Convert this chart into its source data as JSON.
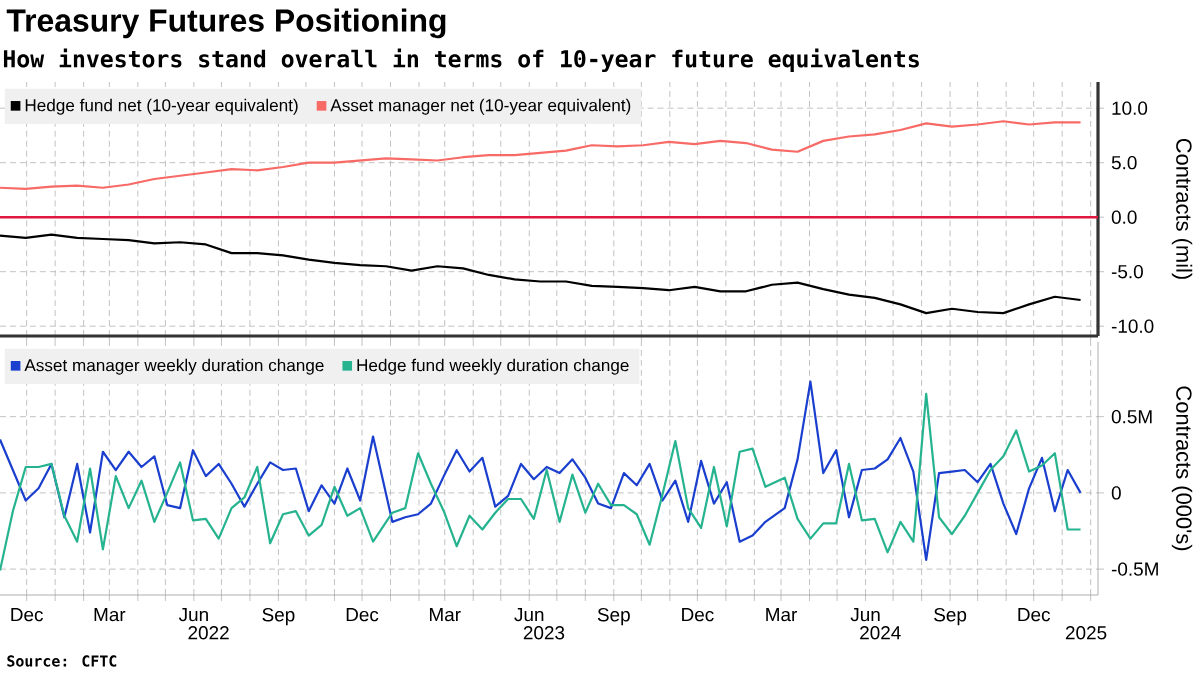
{
  "chart_data": [
    {
      "type": "line",
      "title": "Treasury Futures Positioning",
      "subtitle": "How investors stand overall in terms of 10-year future equivalents",
      "ylabel": "Contracts (mil)",
      "x": [
        "2021-11-16",
        "2021-12-14",
        "2022-01-11",
        "2022-02-08",
        "2022-03-08",
        "2022-04-05",
        "2022-05-03",
        "2022-05-31",
        "2022-06-28",
        "2022-07-26",
        "2022-08-23",
        "2022-09-20",
        "2022-10-18",
        "2022-11-15",
        "2022-12-13",
        "2023-01-10",
        "2023-02-07",
        "2023-03-07",
        "2023-04-04",
        "2023-05-02",
        "2023-05-30",
        "2023-06-27",
        "2023-07-25",
        "2023-08-22",
        "2023-09-19",
        "2023-10-17",
        "2023-11-14",
        "2023-12-12",
        "2024-01-09",
        "2024-02-06",
        "2024-03-05",
        "2024-04-02",
        "2024-04-30",
        "2024-05-28",
        "2024-06-25",
        "2024-07-23",
        "2024-08-20",
        "2024-09-17",
        "2024-10-15",
        "2024-11-12",
        "2024-12-10",
        "2025-01-07",
        "2025-02-04"
      ],
      "series": [
        {
          "name": "Hedge fund net (10-year equivalent)",
          "color": "#000000",
          "values": [
            -1.7,
            -1.9,
            -1.6,
            -1.9,
            -2.0,
            -2.1,
            -2.4,
            -2.3,
            -2.5,
            -3.3,
            -3.3,
            -3.5,
            -3.9,
            -4.2,
            -4.4,
            -4.5,
            -4.9,
            -4.5,
            -4.7,
            -5.3,
            -5.7,
            -5.9,
            -5.9,
            -6.3,
            -6.4,
            -6.5,
            -6.7,
            -6.4,
            -6.8,
            -6.8,
            -6.2,
            -6.0,
            -6.6,
            -7.1,
            -7.4,
            -8.0,
            -8.8,
            -8.4,
            -8.7,
            -8.8,
            -8.0,
            -7.3,
            -7.6
          ]
        },
        {
          "name": "Asset manager net (10-year equivalent)",
          "color": "#f86a66",
          "values": [
            2.7,
            2.6,
            2.8,
            2.9,
            2.7,
            3.0,
            3.5,
            3.8,
            4.1,
            4.4,
            4.3,
            4.6,
            5.0,
            5.0,
            5.2,
            5.4,
            5.3,
            5.2,
            5.5,
            5.7,
            5.7,
            5.9,
            6.1,
            6.6,
            6.5,
            6.6,
            6.9,
            6.7,
            7.0,
            6.8,
            6.2,
            6.0,
            7.0,
            7.4,
            7.6,
            8.0,
            8.6,
            8.3,
            8.5,
            8.8,
            8.5,
            8.7,
            8.7
          ]
        }
      ],
      "xlim": [
        "2021-11-16",
        "2025-02-23"
      ],
      "ylim": [
        -10.9,
        12.4
      ],
      "xticks": [
        {
          "value": "2021-12-15",
          "label": null
        },
        {
          "value": "2022-01-15",
          "label": null
        },
        {
          "value": "2022-02-15",
          "label": null
        },
        {
          "value": "2022-03-15",
          "label": null
        },
        {
          "value": "2022-04-15",
          "label": null
        },
        {
          "value": "2022-05-15",
          "label": null
        },
        {
          "value": "2022-06-15",
          "label": null
        },
        {
          "value": "2022-07-15",
          "label": null
        },
        {
          "value": "2022-08-15",
          "label": null
        },
        {
          "value": "2022-09-15",
          "label": null
        },
        {
          "value": "2022-10-15",
          "label": null
        },
        {
          "value": "2022-11-15",
          "label": null
        },
        {
          "value": "2022-12-15",
          "label": null
        },
        {
          "value": "2023-01-15",
          "label": null
        },
        {
          "value": "2023-02-15",
          "label": null
        },
        {
          "value": "2023-03-15",
          "label": null
        },
        {
          "value": "2023-04-15",
          "label": null
        },
        {
          "value": "2023-05-15",
          "label": null
        },
        {
          "value": "2023-06-15",
          "label": null
        },
        {
          "value": "2023-07-15",
          "label": null
        },
        {
          "value": "2023-08-15",
          "label": null
        },
        {
          "value": "2023-09-15",
          "label": null
        },
        {
          "value": "2023-10-15",
          "label": null
        },
        {
          "value": "2023-11-15",
          "label": null
        },
        {
          "value": "2023-12-15",
          "label": null
        },
        {
          "value": "2024-01-15",
          "label": null
        },
        {
          "value": "2024-02-15",
          "label": null
        },
        {
          "value": "2024-03-15",
          "label": null
        },
        {
          "value": "2024-04-15",
          "label": null
        },
        {
          "value": "2024-05-15",
          "label": null
        },
        {
          "value": "2024-06-15",
          "label": null
        },
        {
          "value": "2024-07-15",
          "label": null
        },
        {
          "value": "2024-08-15",
          "label": null
        },
        {
          "value": "2024-09-15",
          "label": null
        },
        {
          "value": "2024-10-15",
          "label": null
        },
        {
          "value": "2024-11-15",
          "label": null
        },
        {
          "value": "2024-12-15",
          "label": null
        },
        {
          "value": "2025-01-15",
          "label": null
        },
        {
          "value": "2025-02-15",
          "label": null
        }
      ],
      "yticks": [
        {
          "value": -10,
          "label": "-10.0"
        },
        {
          "value": -5,
          "label": "-5.0"
        },
        {
          "value": 0,
          "label": "0.0"
        },
        {
          "value": 5,
          "label": "5.0"
        },
        {
          "value": 10,
          "label": "10.0"
        }
      ],
      "ref_lines": [
        {
          "axis": "y",
          "value": 0,
          "color": "#e0173e"
        }
      ],
      "grid": true,
      "legend": "top left",
      "tick_labels": "y"
    },
    {
      "type": "line",
      "ylabel": "Contracts (000's)",
      "x": [
        "2021-11-16",
        "2021-11-30",
        "2021-12-14",
        "2021-12-28",
        "2022-01-11",
        "2022-01-25",
        "2022-02-08",
        "2022-02-22",
        "2022-03-08",
        "2022-03-22",
        "2022-04-05",
        "2022-04-19",
        "2022-05-03",
        "2022-05-17",
        "2022-05-31",
        "2022-06-14",
        "2022-06-28",
        "2022-07-12",
        "2022-07-26",
        "2022-08-09",
        "2022-08-23",
        "2022-09-06",
        "2022-09-20",
        "2022-10-04",
        "2022-10-18",
        "2022-11-01",
        "2022-11-15",
        "2022-11-29",
        "2022-12-13",
        "2022-12-27",
        "2023-01-17",
        "2023-01-31",
        "2023-02-14",
        "2023-02-28",
        "2023-03-14",
        "2023-03-28",
        "2023-04-11",
        "2023-04-25",
        "2023-05-09",
        "2023-05-23",
        "2023-06-06",
        "2023-06-20",
        "2023-07-04",
        "2023-07-18",
        "2023-08-01",
        "2023-08-15",
        "2023-08-29",
        "2023-09-12",
        "2023-09-26",
        "2023-10-10",
        "2023-10-24",
        "2023-11-07",
        "2023-11-21",
        "2023-12-05",
        "2023-12-19",
        "2024-01-02",
        "2024-01-16",
        "2024-01-30",
        "2024-02-13",
        "2024-02-27",
        "2024-03-19",
        "2024-04-02",
        "2024-04-16",
        "2024-04-30",
        "2024-05-14",
        "2024-05-28",
        "2024-06-11",
        "2024-06-25",
        "2024-07-09",
        "2024-07-23",
        "2024-08-06",
        "2024-08-20",
        "2024-09-03",
        "2024-09-17",
        "2024-10-01",
        "2024-10-15",
        "2024-10-29",
        "2024-11-12",
        "2024-11-26",
        "2024-12-10",
        "2024-12-24",
        "2025-01-07",
        "2025-01-21",
        "2025-02-04"
      ],
      "series": [
        {
          "name": "Asset manager weekly duration change",
          "color": "#1a3fcf",
          "values": [
            0.35,
            0.15,
            -0.05,
            0.03,
            0.19,
            -0.16,
            0.19,
            -0.26,
            0.27,
            0.15,
            0.27,
            0.17,
            0.24,
            -0.08,
            -0.1,
            0.28,
            0.11,
            0.19,
            0.06,
            -0.09,
            0.06,
            0.2,
            0.15,
            0.16,
            -0.12,
            0.05,
            -0.07,
            0.16,
            -0.05,
            0.37,
            -0.19,
            -0.16,
            -0.14,
            -0.07,
            0.11,
            0.28,
            0.14,
            0.23,
            -0.09,
            -0.02,
            0.19,
            0.09,
            0.17,
            0.13,
            0.22,
            0.1,
            -0.07,
            -0.1,
            0.13,
            0.05,
            0.19,
            -0.05,
            0.08,
            -0.19,
            0.21,
            -0.07,
            0.07,
            -0.32,
            -0.28,
            -0.19,
            -0.1,
            0.22,
            0.73,
            0.13,
            0.28,
            -0.16,
            0.15,
            0.16,
            0.22,
            0.36,
            0.14,
            -0.44,
            0.13,
            0.14,
            0.15,
            0.07,
            0.19,
            -0.07,
            -0.27,
            0.03,
            0.23,
            -0.12,
            0.15,
            0.0
          ]
        },
        {
          "name": "Hedge fund weekly duration change",
          "color": "#26b38f",
          "values": [
            -0.51,
            -0.12,
            0.17,
            0.17,
            0.19,
            -0.15,
            -0.32,
            0.16,
            -0.37,
            0.11,
            -0.1,
            0.08,
            -0.19,
            0.0,
            0.2,
            -0.18,
            -0.17,
            -0.3,
            -0.1,
            -0.03,
            0.17,
            -0.33,
            -0.14,
            -0.12,
            -0.28,
            -0.21,
            0.04,
            -0.15,
            -0.1,
            -0.32,
            -0.13,
            -0.1,
            0.26,
            0.06,
            -0.12,
            -0.35,
            -0.15,
            -0.24,
            -0.13,
            -0.04,
            -0.04,
            -0.17,
            0.15,
            -0.19,
            0.12,
            -0.13,
            0.06,
            -0.08,
            -0.08,
            -0.14,
            -0.34,
            -0.01,
            0.34,
            -0.1,
            -0.23,
            0.17,
            -0.22,
            0.27,
            0.29,
            0.04,
            0.1,
            -0.17,
            -0.3,
            -0.2,
            -0.2,
            0.19,
            -0.18,
            -0.17,
            -0.39,
            -0.19,
            -0.32,
            0.65,
            -0.16,
            -0.27,
            -0.15,
            0.0,
            0.15,
            0.24,
            0.41,
            0.14,
            0.18,
            0.26,
            -0.24,
            -0.24
          ]
        }
      ],
      "xlim": [
        "2021-11-16",
        "2025-02-23"
      ],
      "ylim": [
        -0.67,
        0.99
      ],
      "xticks": [
        {
          "value": "2021-12-15",
          "label": "Dec"
        },
        {
          "value": "2022-01-15",
          "label": null
        },
        {
          "value": "2022-02-15",
          "label": null
        },
        {
          "value": "2022-03-15",
          "label": "Mar"
        },
        {
          "value": "2022-04-15",
          "label": null
        },
        {
          "value": "2022-05-15",
          "label": null
        },
        {
          "value": "2022-06-15",
          "label": "Jun"
        },
        {
          "value": "2022-07-15",
          "label": null
        },
        {
          "value": "2022-08-15",
          "label": null
        },
        {
          "value": "2022-09-15",
          "label": "Sep"
        },
        {
          "value": "2022-10-15",
          "label": null
        },
        {
          "value": "2022-11-15",
          "label": null
        },
        {
          "value": "2022-12-15",
          "label": "Dec"
        },
        {
          "value": "2023-01-15",
          "label": null
        },
        {
          "value": "2023-02-15",
          "label": null
        },
        {
          "value": "2023-03-15",
          "label": "Mar"
        },
        {
          "value": "2023-04-15",
          "label": null
        },
        {
          "value": "2023-05-15",
          "label": null
        },
        {
          "value": "2023-06-15",
          "label": "Jun"
        },
        {
          "value": "2023-07-15",
          "label": null
        },
        {
          "value": "2023-08-15",
          "label": null
        },
        {
          "value": "2023-09-15",
          "label": "Sep"
        },
        {
          "value": "2023-10-15",
          "label": null
        },
        {
          "value": "2023-11-15",
          "label": null
        },
        {
          "value": "2023-12-15",
          "label": "Dec"
        },
        {
          "value": "2024-01-15",
          "label": null
        },
        {
          "value": "2024-02-15",
          "label": null
        },
        {
          "value": "2024-03-15",
          "label": "Mar"
        },
        {
          "value": "2024-04-15",
          "label": null
        },
        {
          "value": "2024-05-15",
          "label": null
        },
        {
          "value": "2024-06-15",
          "label": "Jun"
        },
        {
          "value": "2024-07-15",
          "label": null
        },
        {
          "value": "2024-08-15",
          "label": null
        },
        {
          "value": "2024-09-15",
          "label": "Sep"
        },
        {
          "value": "2024-10-15",
          "label": null
        },
        {
          "value": "2024-11-15",
          "label": null
        },
        {
          "value": "2024-12-15",
          "label": "Dec"
        },
        {
          "value": "2025-01-15",
          "label": null
        },
        {
          "value": "2025-02-15",
          "label": null
        }
      ],
      "yticks": [
        {
          "value": -0.5,
          "label": "-0.5M"
        },
        {
          "value": 0,
          "label": "0"
        },
        {
          "value": 0.5,
          "label": "0.5M"
        }
      ],
      "x2lim": [
        "2021-11-16",
        "2025-02-23"
      ],
      "x2ticks": [
        {
          "value": "2022-07-01",
          "label": "2022"
        },
        {
          "value": "2023-07-01",
          "label": "2023"
        },
        {
          "value": "2024-07-01",
          "label": "2024"
        },
        {
          "value": "2025-02-10",
          "label": "2025"
        }
      ],
      "grid": true,
      "legend": "top left",
      "annotations": [
        "Source: CFTC"
      ]
    }
  ]
}
